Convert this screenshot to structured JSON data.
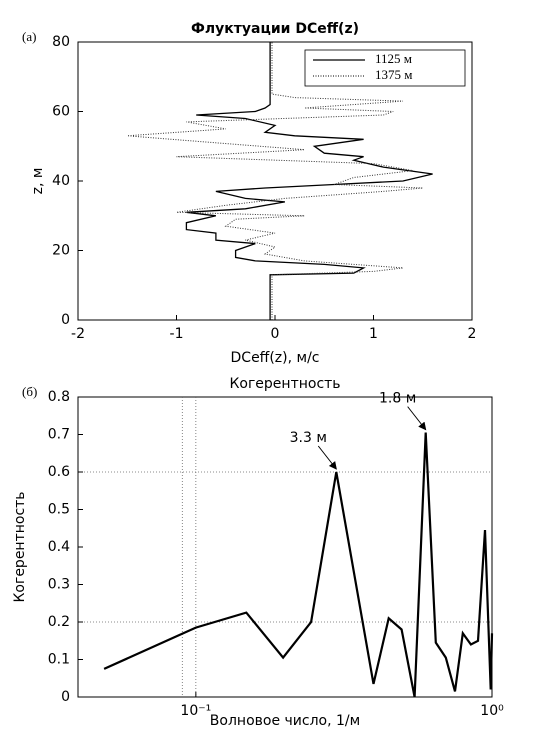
{
  "chart_data": [
    {
      "type": "profile",
      "panel": "(а)",
      "title": "Флуктуации DCeff(z)",
      "x_label": "DCeff(z), м/с",
      "y_label": "z, м",
      "xlim": [
        -2,
        2
      ],
      "xticks": [
        -2,
        -1,
        0,
        1,
        2
      ],
      "ylim": [
        0,
        80
      ],
      "yticks": [
        0,
        20,
        40,
        60,
        80
      ],
      "legend": "upper right",
      "series": [
        {
          "name": "1125 м",
          "color": "#000000",
          "dash": "solid",
          "values": [
            -0.05,
            -0.05,
            0.8,
            0.9,
            0.5,
            -0.2,
            -0.4,
            -0.4,
            -0.2,
            -0.6,
            -0.6,
            -0.9,
            -0.9,
            -0.6,
            -0.9,
            -0.3,
            0.1,
            -0.3,
            -0.6,
            -0.1,
            0.6,
            1.3,
            1.6,
            1.1,
            0.8,
            0.9,
            0.5,
            0.4,
            0.9,
            0.2,
            -0.1,
            0.0,
            -0.3,
            -0.8,
            -0.2,
            -0.1,
            -0.05,
            -0.05
          ],
          "z": [
            0,
            13,
            13.5,
            15,
            16,
            17,
            18,
            20,
            22,
            23,
            25,
            26,
            28,
            30,
            31,
            32,
            34,
            35,
            37,
            38,
            39,
            40,
            42,
            44,
            46,
            47,
            48,
            50,
            52,
            53,
            54,
            56,
            58,
            59,
            60,
            61,
            62,
            80
          ]
        },
        {
          "name": "1375 м",
          "color": "#333333",
          "dash": "dotted",
          "values": [
            -0.03,
            -0.03,
            1.0,
            1.3,
            0.8,
            0.3,
            -0.1,
            0.0,
            -0.3,
            0.0,
            -0.5,
            -0.4,
            0.3,
            -1.0,
            -0.5,
            0.1,
            1.1,
            1.5,
            0.6,
            0.8,
            1.4,
            1.0,
            -1.0,
            0.3,
            -0.6,
            -1.5,
            -0.5,
            -0.9,
            1.1,
            1.2,
            0.3,
            1.3,
            0.2,
            -0.03,
            -0.03
          ],
          "z": [
            0,
            13,
            14,
            15,
            16,
            17,
            19,
            21,
            23,
            25,
            27,
            29,
            30,
            31,
            33,
            35,
            37,
            38,
            39,
            41,
            43,
            45,
            47,
            49,
            51,
            53,
            55,
            57,
            59,
            60,
            61,
            63,
            64,
            65,
            80
          ]
        }
      ]
    },
    {
      "type": "line",
      "panel": "(б)",
      "title": "Когерентность",
      "x_label": "Волновое число, 1/м",
      "y_label": "Когерентность",
      "log_x": true,
      "color": "#000000",
      "x": [
        0.049,
        0.1,
        0.148,
        0.197,
        0.245,
        0.298,
        0.398,
        0.448,
        0.495,
        0.548,
        0.597,
        0.646,
        0.698,
        0.75,
        0.797,
        0.849,
        0.897,
        0.947,
        0.99,
        1.0
      ],
      "values": [
        0.075,
        0.185,
        0.225,
        0.105,
        0.2,
        0.6,
        0.035,
        0.21,
        0.18,
        0.0,
        0.705,
        0.145,
        0.105,
        0.015,
        0.17,
        0.14,
        0.15,
        0.445,
        0.02,
        0.17
      ],
      "xlim": [
        0.04,
        1
      ],
      "xticks": [
        {
          "value": 0.1,
          "label": "10⁻¹"
        },
        {
          "value": 1,
          "label": "10⁰"
        }
      ],
      "ylim": [
        0,
        0.8
      ],
      "yticks": [
        0,
        0.1,
        0.2,
        0.3,
        0.4,
        0.5,
        0.6,
        0.7,
        0.8
      ],
      "grid_y": [
        0.2,
        0.6
      ],
      "grid_x": [
        0.09,
        0.1
      ],
      "annotations": [
        {
          "text": "3.3 м",
          "x": 0.298,
          "y": 0.6
        },
        {
          "text": "1.8 м",
          "x": 0.597,
          "y": 0.705
        }
      ]
    }
  ]
}
